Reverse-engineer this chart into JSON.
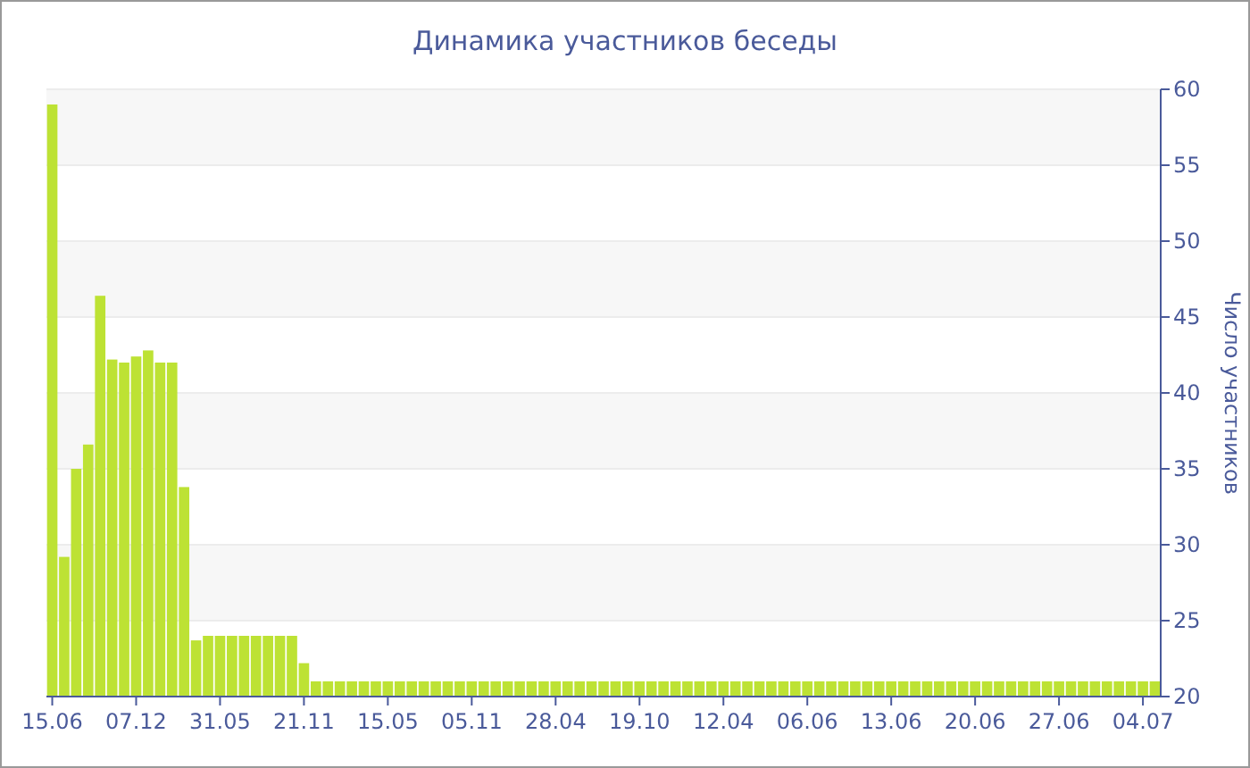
{
  "chart_data": {
    "type": "bar",
    "title": "Динамика участников беседы",
    "ylabel": "Число участников",
    "categories": [
      "15.06",
      null,
      null,
      null,
      null,
      null,
      null,
      "07.12",
      null,
      null,
      null,
      null,
      null,
      null,
      "31.05",
      null,
      null,
      null,
      null,
      null,
      null,
      "21.11",
      null,
      null,
      null,
      null,
      null,
      null,
      "15.05",
      null,
      null,
      null,
      null,
      null,
      null,
      "05.11",
      null,
      null,
      null,
      null,
      null,
      null,
      "28.04",
      null,
      null,
      null,
      null,
      null,
      null,
      "19.10",
      null,
      null,
      null,
      null,
      null,
      null,
      "12.04",
      null,
      null,
      null,
      null,
      null,
      null,
      "06.06",
      null,
      null,
      null,
      null,
      null,
      null,
      "13.06",
      null,
      null,
      null,
      null,
      null,
      null,
      "20.06",
      null,
      null,
      null,
      null,
      null,
      null,
      "27.06",
      null,
      null,
      null,
      null,
      null,
      null,
      "04.07",
      null
    ],
    "values": [
      59,
      29.2,
      35,
      36.6,
      46.4,
      42.2,
      42,
      42.4,
      42.8,
      42,
      42,
      33.8,
      23.7,
      24,
      24,
      24,
      24,
      24,
      24,
      24,
      24,
      22.2,
      21,
      21,
      21,
      21,
      21,
      21,
      21,
      21,
      21,
      21,
      21,
      21,
      21,
      21,
      21,
      21,
      21,
      21,
      21,
      21,
      21,
      21,
      21,
      21,
      21,
      21,
      21,
      21,
      21,
      21,
      21,
      21,
      21,
      21,
      21,
      21,
      21,
      21,
      21,
      21,
      21,
      21,
      21,
      21,
      21,
      21,
      21,
      21,
      21,
      21,
      21,
      21,
      21,
      21,
      21,
      21,
      21,
      21,
      21,
      21,
      21,
      21,
      21,
      21,
      21,
      21,
      21,
      21,
      21,
      21,
      21
    ],
    "color": "#bde234",
    "ylim": [
      20,
      60
    ],
    "yticks": [
      20,
      25,
      30,
      35,
      40,
      45,
      50,
      55,
      60
    ],
    "grid": "y"
  }
}
